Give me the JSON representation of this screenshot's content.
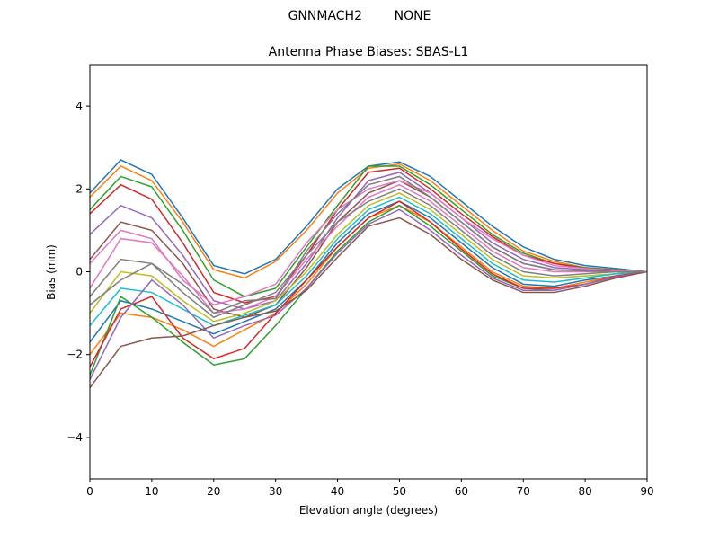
{
  "chart_data": {
    "type": "line",
    "suptitle": "GNNMACH2        NONE",
    "title": "Antenna Phase Biases: SBAS-L1",
    "xlabel": "Elevation angle (degrees)",
    "ylabel": "Bias (mm)",
    "xlim": [
      0,
      90
    ],
    "ylim": [
      -5,
      5
    ],
    "xticks": [
      "0",
      "10",
      "20",
      "30",
      "40",
      "50",
      "60",
      "70",
      "80",
      "90"
    ],
    "yticks": [
      "−4",
      "−2",
      "0",
      "2",
      "4"
    ],
    "ytick_values": [
      -4,
      -2,
      0,
      2,
      4
    ],
    "grid": false,
    "x": [
      0,
      5,
      10,
      15,
      20,
      25,
      30,
      35,
      40,
      45,
      50,
      55,
      60,
      65,
      70,
      75,
      80,
      85,
      90
    ],
    "colors": [
      "#1f77b4",
      "#ff7f0e",
      "#2ca02c",
      "#d62728",
      "#9467bd",
      "#8c564b",
      "#e377c2",
      "#7f7f7f",
      "#bcbd22",
      "#17becf"
    ],
    "series": [
      {
        "values": [
          1.9,
          2.7,
          2.35,
          1.3,
          0.15,
          -0.05,
          0.3,
          1.1,
          2.0,
          2.55,
          2.65,
          2.3,
          1.7,
          1.1,
          0.6,
          0.3,
          0.15,
          0.08,
          0
        ]
      },
      {
        "values": [
          1.8,
          2.55,
          2.2,
          1.2,
          0.05,
          -0.15,
          0.25,
          1.0,
          1.9,
          2.5,
          2.6,
          2.2,
          1.6,
          1.0,
          0.5,
          0.25,
          0.1,
          0.05,
          0
        ]
      },
      {
        "values": [
          1.5,
          2.3,
          2.05,
          1.0,
          -0.2,
          -0.6,
          -0.4,
          0.6,
          1.6,
          2.55,
          2.55,
          2.1,
          1.5,
          0.9,
          0.45,
          0.2,
          0.1,
          0.05,
          0
        ]
      },
      {
        "values": [
          1.4,
          2.1,
          1.75,
          0.7,
          -0.5,
          -0.75,
          -0.6,
          0.4,
          1.5,
          2.4,
          2.5,
          2.0,
          1.4,
          0.85,
          0.4,
          0.2,
          0.08,
          0.04,
          0
        ]
      },
      {
        "values": [
          0.9,
          1.6,
          1.3,
          0.4,
          -0.7,
          -0.9,
          -0.7,
          0.2,
          1.3,
          2.2,
          2.4,
          1.9,
          1.3,
          0.7,
          0.3,
          0.1,
          0.05,
          0.02,
          0
        ]
      },
      {
        "values": [
          0.3,
          1.2,
          1.0,
          0.2,
          -0.9,
          -1.1,
          -0.8,
          0.1,
          1.2,
          1.9,
          2.2,
          1.8,
          1.2,
          0.6,
          0.2,
          0.05,
          0.02,
          0.01,
          0
        ]
      },
      {
        "values": [
          -0.4,
          0.8,
          0.7,
          -0.1,
          -1.0,
          -0.9,
          -0.6,
          0.3,
          1.1,
          1.8,
          2.1,
          1.7,
          1.1,
          0.5,
          0.1,
          0.0,
          0.0,
          0.0,
          0
        ]
      },
      {
        "values": [
          -0.6,
          0.3,
          0.2,
          -0.5,
          -1.1,
          -0.8,
          -0.5,
          0.4,
          1.2,
          1.7,
          2.0,
          1.6,
          1.0,
          0.4,
          0.0,
          -0.1,
          -0.05,
          0.0,
          0
        ]
      },
      {
        "values": [
          -1.0,
          0.0,
          -0.1,
          -0.7,
          -1.2,
          -1.0,
          -0.7,
          0.0,
          0.9,
          1.6,
          1.9,
          1.5,
          0.9,
          0.3,
          -0.1,
          -0.15,
          -0.1,
          -0.05,
          0
        ]
      },
      {
        "values": [
          -1.3,
          -0.4,
          -0.5,
          -0.9,
          -1.3,
          -1.05,
          -0.8,
          -0.1,
          0.8,
          1.5,
          1.8,
          1.4,
          0.8,
          0.2,
          -0.2,
          -0.25,
          -0.15,
          -0.05,
          0
        ]
      },
      {
        "values": [
          -1.7,
          -0.7,
          -0.9,
          -1.2,
          -1.5,
          -1.2,
          -0.9,
          -0.2,
          0.7,
          1.4,
          1.7,
          1.3,
          0.7,
          0.1,
          -0.3,
          -0.35,
          -0.2,
          -0.1,
          0
        ]
      },
      {
        "values": [
          -2.0,
          -1.0,
          -1.1,
          -1.4,
          -1.8,
          -1.4,
          -1.0,
          -0.3,
          0.6,
          1.3,
          1.6,
          1.2,
          0.6,
          0.0,
          -0.35,
          -0.4,
          -0.25,
          -0.1,
          0
        ]
      },
      {
        "values": [
          -2.5,
          -0.6,
          -1.1,
          -1.7,
          -2.25,
          -2.1,
          -1.3,
          -0.4,
          0.5,
          1.2,
          1.6,
          1.1,
          0.5,
          -0.1,
          -0.4,
          -0.45,
          -0.3,
          -0.12,
          0
        ]
      },
      {
        "values": [
          -2.3,
          -0.9,
          -0.6,
          -1.6,
          -2.1,
          -1.85,
          -1.0,
          -0.2,
          0.6,
          1.3,
          1.7,
          1.2,
          0.55,
          -0.05,
          -0.4,
          -0.4,
          -0.3,
          -0.1,
          0
        ]
      },
      {
        "values": [
          -2.6,
          -1.1,
          -0.2,
          -0.8,
          -1.6,
          -1.3,
          -1.05,
          -0.4,
          0.45,
          1.15,
          1.5,
          1.0,
          0.4,
          -0.15,
          -0.45,
          -0.45,
          -0.3,
          -0.12,
          0
        ]
      },
      {
        "values": [
          -2.8,
          -1.8,
          -1.6,
          -1.55,
          -1.3,
          -1.1,
          -0.95,
          -0.45,
          0.35,
          1.1,
          1.3,
          0.9,
          0.3,
          -0.2,
          -0.5,
          -0.5,
          -0.35,
          -0.15,
          0
        ]
      },
      {
        "values": [
          0.2,
          1.0,
          0.8,
          -0.2,
          -0.8,
          -0.6,
          -0.3,
          0.7,
          1.5,
          2.0,
          2.2,
          1.9,
          1.3,
          0.8,
          0.4,
          0.15,
          0.08,
          0.03,
          0
        ]
      },
      {
        "values": [
          -0.8,
          -0.2,
          0.2,
          -0.3,
          -1.0,
          -0.7,
          -0.65,
          0.5,
          1.4,
          2.1,
          2.3,
          1.8,
          1.2,
          0.6,
          0.2,
          0.05,
          0.02,
          0.0,
          0
        ]
      }
    ]
  }
}
